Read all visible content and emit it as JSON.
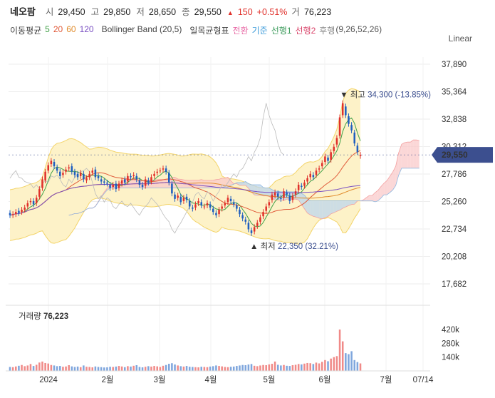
{
  "header": {
    "name": "네오팜",
    "open_label": "시",
    "open": "29,450",
    "high_label": "고",
    "high": "29,850",
    "low_label": "저",
    "low": "28,650",
    "close_label": "종",
    "close": "29,550",
    "change_arrow": "▲",
    "change": "150",
    "change_pct": "+0.51%",
    "volume_label": "거",
    "volume": "76,223"
  },
  "indicators": {
    "ma_label": "이동평균",
    "ma": [
      "5",
      "20",
      "60",
      "120"
    ],
    "bb": "Bollinger Band (20,5)",
    "ichimoku_label": "일목균형표",
    "ich_conv": "전환",
    "ich_base": "기준",
    "ich_span1": "선행1",
    "ich_span2": "선행2",
    "ich_lag": "후행",
    "ich_params": "(9,26,52,26)"
  },
  "colors": {
    "up": "#e0312b",
    "down": "#1f5fbf",
    "ma5": "#41a047",
    "ma20": "#e05a3a",
    "ma60": "#e08a2a",
    "ma120": "#7a4fc2",
    "bb_fill": "#fdf2c8",
    "bb_line": "#f3d46a",
    "current": "#3c4f8f"
  },
  "scale_mode": "Linear",
  "volume_panel": {
    "label": "거래량",
    "value": "76,223"
  },
  "chart_data": {
    "type": "candlestick",
    "y_ticks": [
      "37,890",
      "35,364",
      "32,838",
      "30,312",
      "27,786",
      "25,260",
      "22,734",
      "20,208",
      "17,682"
    ],
    "y_tick_values": [
      37890,
      35364,
      32838,
      30312,
      27786,
      25260,
      22734,
      20208,
      17682
    ],
    "x_ticks": [
      "2024",
      "2월",
      "3월",
      "4월",
      "5월",
      "6월",
      "7월",
      "07/14"
    ],
    "volume_ticks": [
      "420k",
      "280k",
      "140k"
    ],
    "volume_tick_values": [
      420000,
      280000,
      140000
    ],
    "current_price": "29,550",
    "current_value": 29550,
    "max_annotation": {
      "label": "최고",
      "value": "34,300",
      "pct": "(-13.85%)",
      "price": 34300
    },
    "min_annotation": {
      "label": "최저",
      "value": "22,350",
      "pct": "(32.21%)",
      "price": 22350
    },
    "close_series": [
      24000,
      24100,
      24300,
      24200,
      24500,
      24700,
      25100,
      25300,
      25000,
      25600,
      26400,
      27300,
      28000,
      28600,
      29000,
      28500,
      28100,
      27600,
      27900,
      28200,
      28400,
      28000,
      27700,
      27500,
      27900,
      27300,
      27400,
      27800,
      28100,
      27500,
      27400,
      27100,
      27000,
      26900,
      26500,
      26800,
      26400,
      26900,
      27200,
      27000,
      27600,
      27500,
      27700,
      27300,
      26800,
      26600,
      27300,
      27000,
      27500,
      27800,
      28000,
      28100,
      28300,
      28000,
      27000,
      26000,
      25500,
      25800,
      25200,
      25600,
      25400,
      24800,
      24600,
      25000,
      25300,
      24900,
      24800,
      25100,
      24700,
      24300,
      24000,
      24500,
      24800,
      25100,
      25600,
      25300,
      25000,
      24600,
      24100,
      23700,
      23400,
      22700,
      22350,
      22900,
      23300,
      23800,
      24300,
      24800,
      25200,
      25900,
      26100,
      25700,
      25500,
      26200,
      25900,
      25300,
      25800,
      26200,
      26800,
      26600,
      27000,
      27400,
      27800,
      27500,
      28100,
      28300,
      28800,
      29400,
      29000,
      29800,
      30300,
      31100,
      33000,
      34300,
      33200,
      32400,
      31800,
      30600,
      29800,
      29550
    ],
    "open_series": [
      24200,
      24000,
      24100,
      24400,
      24300,
      24500,
      24800,
      25200,
      25300,
      25100,
      25700,
      26500,
      27200,
      28100,
      28700,
      28900,
      28400,
      28000,
      27700,
      28000,
      28300,
      28500,
      28000,
      27800,
      27600,
      27800,
      27200,
      27500,
      27900,
      28200,
      27600,
      27300,
      27100,
      27000,
      26800,
      26600,
      26900,
      26500,
      26900,
      27300,
      27100,
      27600,
      27600,
      27600,
      27200,
      26800,
      26700,
      27200,
      27100,
      27600,
      27900,
      28100,
      28200,
      28300,
      27900,
      26900,
      25900,
      25600,
      25700,
      25300,
      25700,
      25300,
      24700,
      24700,
      25100,
      25200,
      24800,
      24900,
      25000,
      24600,
      24200,
      24100,
      24600,
      24900,
      25200,
      25500,
      25200,
      24900,
      24500,
      24000,
      23600,
      23300,
      22600,
      22500,
      23000,
      23400,
      23900,
      24400,
      24900,
      25400,
      25800,
      26000,
      25600,
      25600,
      26100,
      25800,
      25400,
      25900,
      26300,
      26700,
      26700,
      27100,
      27500,
      27700,
      27700,
      28200,
      28500,
      28900,
      29300,
      29100,
      29900,
      30500,
      31300,
      33200,
      34000,
      33100,
      32300,
      31600,
      30400,
      29450
    ],
    "volume_series": [
      40,
      38,
      45,
      52,
      60,
      48,
      55,
      70,
      50,
      62,
      85,
      95,
      80,
      75,
      60,
      55,
      48,
      50,
      42,
      45,
      58,
      46,
      40,
      44,
      38,
      55,
      42,
      40,
      36,
      45,
      40,
      38,
      35,
      36,
      42,
      40,
      44,
      50,
      45,
      38,
      48,
      44,
      52,
      58,
      40,
      36,
      42,
      48,
      44,
      50,
      46,
      40,
      52,
      60,
      72,
      78,
      65,
      55,
      48,
      44,
      50,
      42,
      40,
      38,
      36,
      42,
      40,
      38,
      44,
      48,
      55,
      50,
      46,
      40,
      38,
      42,
      44,
      50,
      55,
      60,
      58,
      65,
      70,
      52,
      48,
      55,
      60,
      58,
      66,
      72,
      95,
      62,
      55,
      60,
      52,
      50,
      58,
      62,
      70,
      66,
      74,
      80,
      78,
      70,
      84,
      76,
      92,
      110,
      98,
      125,
      140,
      150,
      420,
      300,
      180,
      170,
      200,
      110,
      90,
      76
    ]
  }
}
